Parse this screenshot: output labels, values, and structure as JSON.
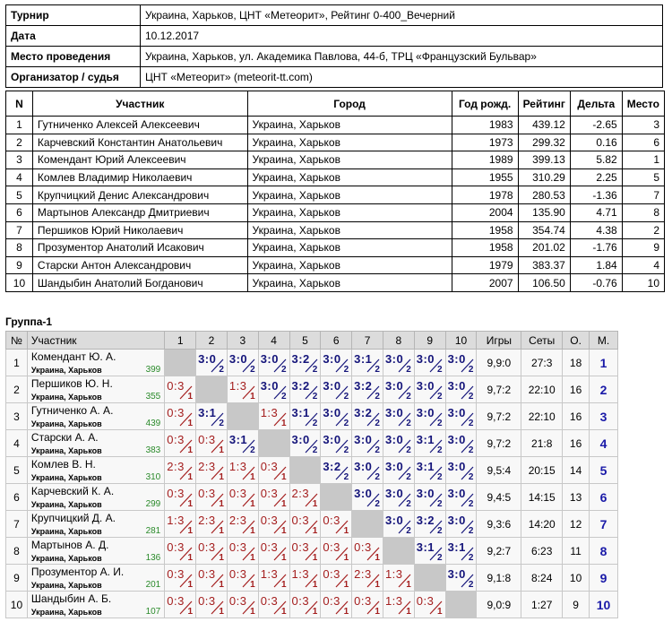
{
  "info": [
    {
      "key": "Турнир",
      "value": "Украина, Харьков, ЦНТ «Метеорит», Рейтинг 0-400_Вечерний"
    },
    {
      "key": "Дата",
      "value": "10.12.2017"
    },
    {
      "key": "Место проведения",
      "value": "Украина, Харьков, ул. Академика Павлова, 44-б, ТРЦ «Французский Бульвар»"
    },
    {
      "key": "Организатор / судья",
      "value": "ЦНТ «Метеорит» (meteorit-tt.com)"
    }
  ],
  "participants": {
    "headers": [
      "N",
      "Участник",
      "Город",
      "Год рожд.",
      "Рейтинг",
      "Дельта",
      "Место"
    ],
    "rows": [
      [
        "1",
        "Гутниченко Алексей Алексеевич",
        "Украина, Харьков",
        "1983",
        "439.12",
        "-2.65",
        "3"
      ],
      [
        "2",
        "Карчевский Константин Анатольевич",
        "Украина, Харьков",
        "1973",
        "299.32",
        "0.16",
        "6"
      ],
      [
        "3",
        "Комендант Юрий Алексеевич",
        "Украина, Харьков",
        "1989",
        "399.13",
        "5.82",
        "1"
      ],
      [
        "4",
        "Комлев Владимир Николаевич",
        "Украина, Харьков",
        "1955",
        "310.29",
        "2.25",
        "5"
      ],
      [
        "5",
        "Крупчицкий Денис Александрович",
        "Украина, Харьков",
        "1978",
        "280.53",
        "-1.36",
        "7"
      ],
      [
        "6",
        "Мартынов Александр Дмитриевич",
        "Украина, Харьков",
        "2004",
        "135.90",
        "4.71",
        "8"
      ],
      [
        "7",
        "Першиков Юрий Николаевич",
        "Украина, Харьков",
        "1958",
        "354.74",
        "4.38",
        "2"
      ],
      [
        "8",
        "Прозументор Анатолий Исакович",
        "Украина, Харьков",
        "1958",
        "201.02",
        "-1.76",
        "9"
      ],
      [
        "9",
        "Старски Антон Александрович",
        "Украина, Харьков",
        "1979",
        "383.37",
        "1.84",
        "4"
      ],
      [
        "10",
        "Шандыбин Анатолий Богданович",
        "Украина, Харьков",
        "2007",
        "106.50",
        "-0.76",
        "10"
      ]
    ]
  },
  "group": {
    "title": "Группа-1",
    "headers": {
      "num": "№",
      "player": "Участник",
      "cols": [
        "1",
        "2",
        "3",
        "4",
        "5",
        "6",
        "7",
        "8",
        "9",
        "10"
      ],
      "games": "Игры",
      "sets": "Сеты",
      "points": "О.",
      "place": "М."
    },
    "rows": [
      {
        "n": "1",
        "name": "Комендант Ю. А.",
        "city": "Украина, Харьков",
        "rating": "399",
        "scores": [
          "",
          "3:0|2",
          "3:0|2",
          "3:0|2",
          "3:2|2",
          "3:0|2",
          "3:1|2",
          "3:0|2",
          "3:0|2",
          "3:0|2"
        ],
        "games": "9,9:0",
        "sets": "27:3",
        "points": "18",
        "place": "1"
      },
      {
        "n": "2",
        "name": "Першиков Ю. Н.",
        "city": "Украина, Харьков",
        "rating": "355",
        "scores": [
          "0:3|1",
          "",
          "1:3|1",
          "3:0|2",
          "3:2|2",
          "3:0|2",
          "3:2|2",
          "3:0|2",
          "3:0|2",
          "3:0|2"
        ],
        "games": "9,7:2",
        "sets": "22:10",
        "points": "16",
        "place": "2"
      },
      {
        "n": "3",
        "name": "Гутниченко А. А.",
        "city": "Украина, Харьков",
        "rating": "439",
        "scores": [
          "0:3|1",
          "3:1|2",
          "",
          "1:3|1",
          "3:1|2",
          "3:0|2",
          "3:2|2",
          "3:0|2",
          "3:0|2",
          "3:0|2"
        ],
        "games": "9,7:2",
        "sets": "22:10",
        "points": "16",
        "place": "3"
      },
      {
        "n": "4",
        "name": "Старски А. А.",
        "city": "Украина, Харьков",
        "rating": "383",
        "scores": [
          "0:3|1",
          "0:3|1",
          "3:1|2",
          "",
          "3:0|2",
          "3:0|2",
          "3:0|2",
          "3:0|2",
          "3:1|2",
          "3:0|2"
        ],
        "games": "9,7:2",
        "sets": "21:8",
        "points": "16",
        "place": "4"
      },
      {
        "n": "5",
        "name": "Комлев В. Н.",
        "city": "Украина, Харьков",
        "rating": "310",
        "scores": [
          "2:3|1",
          "2:3|1",
          "1:3|1",
          "0:3|1",
          "",
          "3:2|2",
          "3:0|2",
          "3:0|2",
          "3:1|2",
          "3:0|2"
        ],
        "games": "9,5:4",
        "sets": "20:15",
        "points": "14",
        "place": "5"
      },
      {
        "n": "6",
        "name": "Карчевский К. А.",
        "city": "Украина, Харьков",
        "rating": "299",
        "scores": [
          "0:3|1",
          "0:3|1",
          "0:3|1",
          "0:3|1",
          "2:3|1",
          "",
          "3:0|2",
          "3:0|2",
          "3:0|2",
          "3:0|2"
        ],
        "games": "9,4:5",
        "sets": "14:15",
        "points": "13",
        "place": "6"
      },
      {
        "n": "7",
        "name": "Крупчицкий Д. А.",
        "city": "Украина, Харьков",
        "rating": "281",
        "scores": [
          "1:3|1",
          "2:3|1",
          "2:3|1",
          "0:3|1",
          "0:3|1",
          "0:3|1",
          "",
          "3:0|2",
          "3:2|2",
          "3:0|2"
        ],
        "games": "9,3:6",
        "sets": "14:20",
        "points": "12",
        "place": "7"
      },
      {
        "n": "8",
        "name": "Мартынов А. Д.",
        "city": "Украина, Харьков",
        "rating": "136",
        "scores": [
          "0:3|1",
          "0:3|1",
          "0:3|1",
          "0:3|1",
          "0:3|1",
          "0:3|1",
          "0:3|1",
          "",
          "3:1|2",
          "3:1|2"
        ],
        "games": "9,2:7",
        "sets": "6:23",
        "points": "11",
        "place": "8"
      },
      {
        "n": "9",
        "name": "Прозументор А. И.",
        "city": "Украина, Харьков",
        "rating": "201",
        "scores": [
          "0:3|1",
          "0:3|1",
          "0:3|1",
          "1:3|1",
          "1:3|1",
          "0:3|1",
          "2:3|1",
          "1:3|1",
          "",
          "3:0|2"
        ],
        "games": "9,1:8",
        "sets": "8:24",
        "points": "10",
        "place": "9"
      },
      {
        "n": "10",
        "name": "Шандыбин А. Б.",
        "city": "Украина, Харьков",
        "rating": "107",
        "scores": [
          "0:3|1",
          "0:3|1",
          "0:3|1",
          "0:3|1",
          "0:3|1",
          "0:3|1",
          "0:3|1",
          "1:3|1",
          "0:3|1",
          ""
        ],
        "games": "9,0:9",
        "sets": "1:27",
        "points": "9",
        "place": "10"
      }
    ]
  }
}
